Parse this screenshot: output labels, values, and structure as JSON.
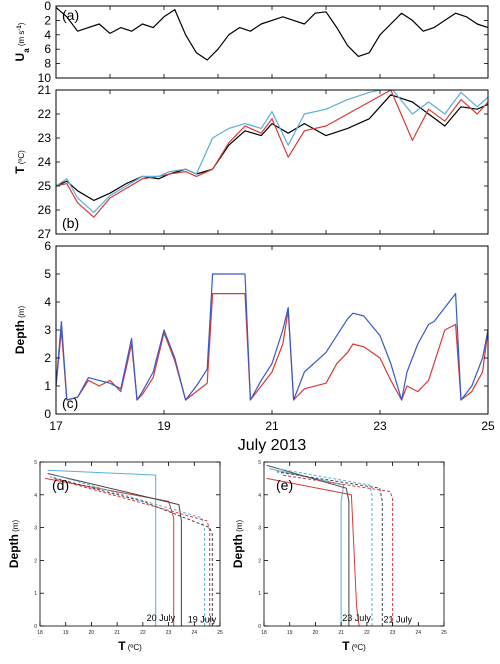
{
  "chart_data": [
    {
      "panel": "a",
      "type": "line",
      "panel_label": "(a)",
      "ylabel_main": "U",
      "ylabel_sub": "a",
      "ylabel_unit": " (m s",
      "ylabel_exp": "-1",
      "ylabel_close": ")",
      "xlim": [
        17,
        25
      ],
      "ylim": [
        0,
        10
      ],
      "yticks": [
        "0",
        "2",
        "4",
        "6",
        "8",
        "10"
      ],
      "series": [
        {
          "color": "#000000",
          "x": [
            17.0,
            17.2,
            17.4,
            17.6,
            17.8,
            18.0,
            18.2,
            18.4,
            18.6,
            18.8,
            19.0,
            19.2,
            19.4,
            19.6,
            19.8,
            20.0,
            20.2,
            20.4,
            20.6,
            20.8,
            21.0,
            21.2,
            21.4,
            21.6,
            21.8,
            22.0,
            22.2,
            22.4,
            22.6,
            22.8,
            23.0,
            23.2,
            23.4,
            23.6,
            23.8,
            24.0,
            24.2,
            24.4,
            24.6,
            24.8,
            25.0
          ],
          "y": [
            0.2,
            1.5,
            3.5,
            3.0,
            2.5,
            3.8,
            3.0,
            3.5,
            2.5,
            3.0,
            1.5,
            0.5,
            4.0,
            6.5,
            7.5,
            6.0,
            4.0,
            3.0,
            3.5,
            2.5,
            2.0,
            1.5,
            2.0,
            2.5,
            1.0,
            0.8,
            3.0,
            5.5,
            7.0,
            6.5,
            4.0,
            2.5,
            1.0,
            2.0,
            3.5,
            3.0,
            2.0,
            1.0,
            1.5,
            2.5,
            3.0
          ]
        }
      ]
    },
    {
      "panel": "b",
      "type": "line",
      "panel_label": "(b)",
      "ylabel_main": "T",
      "ylabel_unit": " (ºC)",
      "xlim": [
        17,
        25
      ],
      "ylim": [
        21,
        27
      ],
      "yticks": [
        "21",
        "22",
        "23",
        "24",
        "25",
        "26",
        "27"
      ],
      "series": [
        {
          "color": "#000000",
          "x": [
            17.0,
            17.2,
            17.4,
            17.7,
            18.0,
            18.3,
            18.6,
            18.9,
            19.1,
            19.4,
            19.6,
            19.9,
            20.2,
            20.5,
            20.8,
            21.0,
            21.3,
            21.6,
            22.0,
            22.4,
            22.8,
            23.2,
            23.6,
            23.9,
            24.2,
            24.5,
            24.8,
            25.0
          ],
          "y": [
            25.0,
            24.8,
            25.2,
            25.6,
            25.3,
            24.9,
            24.6,
            24.7,
            24.5,
            24.3,
            24.5,
            24.3,
            23.3,
            22.7,
            22.9,
            22.4,
            22.8,
            22.4,
            22.9,
            22.6,
            22.2,
            21.2,
            21.5,
            22.0,
            22.5,
            21.7,
            21.8,
            21.6
          ]
        },
        {
          "color": "#d63a3a",
          "x": [
            17.0,
            17.2,
            17.4,
            17.7,
            18.0,
            18.3,
            18.6,
            18.9,
            19.1,
            19.4,
            19.6,
            19.9,
            20.2,
            20.5,
            20.8,
            21.0,
            21.3,
            21.6,
            22.0,
            22.4,
            22.8,
            23.2,
            23.6,
            23.9,
            24.2,
            24.5,
            24.8,
            25.0
          ],
          "y": [
            25.0,
            24.9,
            25.7,
            26.3,
            25.5,
            25.1,
            24.7,
            24.6,
            24.5,
            24.4,
            24.6,
            24.3,
            23.2,
            22.5,
            22.8,
            22.2,
            23.8,
            22.7,
            22.5,
            22.0,
            21.5,
            21.0,
            23.1,
            21.8,
            22.3,
            21.4,
            22.0,
            21.5
          ]
        },
        {
          "color": "#5aafd6",
          "x": [
            17.0,
            17.2,
            17.4,
            17.7,
            18.0,
            18.3,
            18.6,
            18.9,
            19.1,
            19.4,
            19.6,
            19.9,
            20.2,
            20.5,
            20.8,
            21.0,
            21.3,
            21.6,
            22.0,
            22.4,
            22.8,
            23.2,
            23.6,
            23.9,
            24.2,
            24.5,
            24.8,
            25.0
          ],
          "y": [
            25.0,
            24.7,
            25.5,
            26.1,
            25.4,
            25.0,
            24.6,
            24.6,
            24.4,
            24.3,
            24.5,
            23.0,
            22.6,
            22.4,
            22.6,
            21.9,
            23.3,
            22.0,
            21.8,
            21.4,
            21.1,
            20.9,
            22.0,
            21.5,
            22.0,
            21.1,
            21.7,
            21.3
          ]
        }
      ]
    },
    {
      "panel": "c",
      "type": "line",
      "panel_label": "(c)",
      "ylabel_main": "Depth",
      "ylabel_unit": " (m)",
      "xlim": [
        17,
        25
      ],
      "ylim": [
        6,
        0
      ],
      "yticks": [
        "0",
        "1",
        "2",
        "3",
        "4",
        "5",
        "6"
      ],
      "xticks": [
        "17",
        "19",
        "21",
        "23",
        "25"
      ],
      "xtitle": "July 2013",
      "series": [
        {
          "color": "#d63a3a",
          "x": [
            17.0,
            17.1,
            17.2,
            17.4,
            17.6,
            17.8,
            18.0,
            18.2,
            18.4,
            18.5,
            18.6,
            18.8,
            19.0,
            19.2,
            19.4,
            19.6,
            19.8,
            19.9,
            20.0,
            20.5,
            20.6,
            20.8,
            21.0,
            21.2,
            21.3,
            21.4,
            21.6,
            22.0,
            22.2,
            22.4,
            22.5,
            22.7,
            23.0,
            23.2,
            23.4,
            23.5,
            23.7,
            23.9,
            24.0,
            24.2,
            24.4,
            24.5,
            24.7,
            24.9,
            25.0
          ],
          "y": [
            1.0,
            3.0,
            0.5,
            0.6,
            1.2,
            1.0,
            1.2,
            0.8,
            2.5,
            0.5,
            0.7,
            1.3,
            2.9,
            1.9,
            0.5,
            0.8,
            1.1,
            4.3,
            4.3,
            4.3,
            0.5,
            1.0,
            1.5,
            2.5,
            3.7,
            0.5,
            0.9,
            1.1,
            1.8,
            2.2,
            2.5,
            2.4,
            2.0,
            1.2,
            0.5,
            1.0,
            0.8,
            1.2,
            1.8,
            3.0,
            3.2,
            0.5,
            0.8,
            1.5,
            3.0
          ]
        },
        {
          "color": "#3a58c8",
          "x": [
            17.0,
            17.1,
            17.2,
            17.4,
            17.6,
            17.8,
            18.0,
            18.2,
            18.4,
            18.5,
            18.6,
            18.8,
            19.0,
            19.2,
            19.4,
            19.6,
            19.8,
            19.9,
            20.0,
            20.5,
            20.6,
            20.8,
            21.0,
            21.2,
            21.3,
            21.4,
            21.6,
            22.0,
            22.2,
            22.4,
            22.5,
            22.7,
            23.0,
            23.2,
            23.4,
            23.5,
            23.7,
            23.9,
            24.0,
            24.2,
            24.4,
            24.5,
            24.7,
            24.9,
            25.0
          ],
          "y": [
            1.0,
            3.3,
            0.5,
            0.6,
            1.3,
            1.2,
            1.1,
            0.9,
            2.7,
            0.5,
            0.8,
            1.5,
            3.0,
            2.0,
            0.5,
            1.0,
            1.6,
            5.0,
            5.0,
            5.0,
            0.5,
            1.2,
            1.8,
            3.0,
            3.8,
            0.5,
            1.5,
            2.2,
            2.8,
            3.4,
            3.6,
            3.5,
            2.8,
            1.8,
            0.5,
            1.5,
            2.5,
            3.2,
            3.3,
            3.8,
            4.3,
            0.5,
            1.0,
            2.0,
            3.0
          ]
        }
      ]
    },
    {
      "panel": "d",
      "type": "line",
      "panel_label": "(d)",
      "ylabel_main": "Depth",
      "ylabel_unit": " (m)",
      "xlabel_main": "T",
      "xlabel_unit": " (ºC)",
      "xlim": [
        18,
        25
      ],
      "ylim": [
        5,
        0
      ],
      "xticks": [
        "18",
        "19",
        "20",
        "21",
        "22",
        "23",
        "24",
        "25"
      ],
      "yticks": [
        "0",
        "1",
        "2",
        "3",
        "4",
        "5"
      ],
      "annotations": [
        {
          "text": "20 July",
          "x": 22.7,
          "y": 0.25
        },
        {
          "text": "19 July",
          "x": 24.3,
          "y": 0.2
        }
      ],
      "series": [
        {
          "color": "#5aafd6",
          "dash": false,
          "x": [
            22.5,
            22.5,
            22.5,
            18.3
          ],
          "y": [
            0,
            3.5,
            4.6,
            4.75
          ]
        },
        {
          "color": "#d63a3a",
          "dash": false,
          "x": [
            23.2,
            23.2,
            23.0,
            18.2
          ],
          "y": [
            0,
            3.3,
            3.8,
            4.5
          ]
        },
        {
          "color": "#444444",
          "dash": false,
          "x": [
            23.5,
            23.5,
            23.4,
            18.3
          ],
          "y": [
            0,
            3.2,
            3.7,
            4.65
          ]
        },
        {
          "color": "#444444",
          "dash": true,
          "x": [
            24.7,
            24.7,
            24.6,
            22.0,
            18.4
          ],
          "y": [
            0,
            2.8,
            3.0,
            3.8,
            4.55
          ]
        },
        {
          "color": "#5aafd6",
          "dash": true,
          "x": [
            24.4,
            24.4,
            24.3,
            18.6
          ],
          "y": [
            0,
            2.9,
            3.3,
            4.6
          ]
        },
        {
          "color": "#d63a3a",
          "dash": true,
          "x": [
            24.6,
            24.6,
            24.5,
            18.5
          ],
          "y": [
            0,
            2.9,
            3.2,
            4.5
          ]
        }
      ]
    },
    {
      "panel": "e",
      "type": "line",
      "panel_label": "(e)",
      "ylabel_main": "Depth",
      "ylabel_unit": " (m)",
      "xlabel_main": "T",
      "xlabel_unit": " (ºC)",
      "xlim": [
        18,
        25
      ],
      "ylim": [
        5,
        0
      ],
      "xticks": [
        "18",
        "19",
        "20",
        "21",
        "22",
        "23",
        "24",
        "25"
      ],
      "yticks": [
        "0",
        "1",
        "2",
        "3",
        "4",
        "5"
      ],
      "annotations": [
        {
          "text": "23 July",
          "x": 21.6,
          "y": 0.25
        },
        {
          "text": "21 July",
          "x": 23.2,
          "y": 0.2
        }
      ],
      "series": [
        {
          "color": "#5aafd6",
          "dash": false,
          "x": [
            21.0,
            21.0,
            21.1,
            18.2
          ],
          "y": [
            0,
            3.8,
            4.3,
            4.8
          ]
        },
        {
          "color": "#d63a3a",
          "dash": false,
          "x": [
            21.7,
            21.6,
            21.4,
            18.1
          ],
          "y": [
            0,
            0.6,
            4.0,
            4.5
          ]
        },
        {
          "color": "#444444",
          "dash": false,
          "x": [
            21.3,
            21.3,
            21.2,
            18.1
          ],
          "y": [
            0,
            3.8,
            4.2,
            4.9
          ]
        },
        {
          "color": "#444444",
          "dash": true,
          "x": [
            22.6,
            22.6,
            22.5,
            18.5
          ],
          "y": [
            0,
            3.8,
            4.2,
            4.7
          ]
        },
        {
          "color": "#5aafd6",
          "dash": true,
          "x": [
            22.2,
            22.2,
            22.1,
            18.5
          ],
          "y": [
            0,
            4.0,
            4.3,
            4.8
          ]
        },
        {
          "color": "#d63a3a",
          "dash": true,
          "x": [
            23.0,
            23.0,
            22.9,
            18.7
          ],
          "y": [
            0,
            3.9,
            4.1,
            4.6
          ]
        }
      ]
    }
  ]
}
